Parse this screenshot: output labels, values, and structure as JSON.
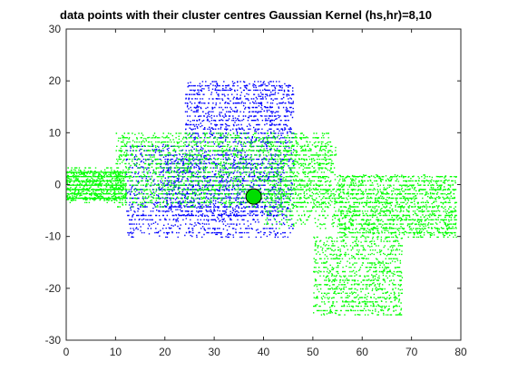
{
  "chart_data": {
    "type": "scatter",
    "title": "data points with their cluster centres Gaussian Kernel (hs,hr)=8,10",
    "xlabel": "",
    "ylabel": "",
    "xlim": [
      0,
      80
    ],
    "ylim": [
      -30,
      30
    ],
    "xticks": [
      "0",
      "10",
      "20",
      "30",
      "40",
      "50",
      "60",
      "70",
      "80"
    ],
    "yticks": [
      "-30",
      "-20",
      "-10",
      "0",
      "10",
      "20",
      "30"
    ],
    "grid": false,
    "legend": "none",
    "series": [
      {
        "color": "#0000ff",
        "approx_extent": {
          "x": [
            10,
            60
          ],
          "y": [
            -10,
            23
          ]
        },
        "region_boxes": [
          {
            "x": [
              24,
              46
            ],
            "y": [
              8,
              20
            ],
            "weight": 4
          },
          {
            "x": [
              12,
              46
            ],
            "y": [
              -10,
              8
            ],
            "weight": 6
          },
          {
            "x": [
              20,
              44
            ],
            "y": [
              -6,
              6
            ],
            "weight": 4
          }
        ]
      },
      {
        "color": "#00ff00",
        "approx_extent": {
          "x": [
            0,
            79
          ],
          "y": [
            -26,
            12
          ]
        },
        "region_boxes": [
          {
            "x": [
              0,
              12
            ],
            "y": [
              -3,
              3
            ],
            "weight": 5
          },
          {
            "x": [
              10,
              54
            ],
            "y": [
              -4,
              10
            ],
            "weight": 9
          },
          {
            "x": [
              55,
              79
            ],
            "y": [
              -10,
              2
            ],
            "weight": 7
          },
          {
            "x": [
              50,
              68
            ],
            "y": [
              -25,
              -10
            ],
            "weight": 4
          },
          {
            "x": [
              40,
              55
            ],
            "y": [
              -8,
              8
            ],
            "weight": 2
          }
        ]
      }
    ],
    "cluster_centres": [
      {
        "x": 38,
        "y": -2.3,
        "color": "#00dd00",
        "edge": "#000000"
      }
    ]
  }
}
